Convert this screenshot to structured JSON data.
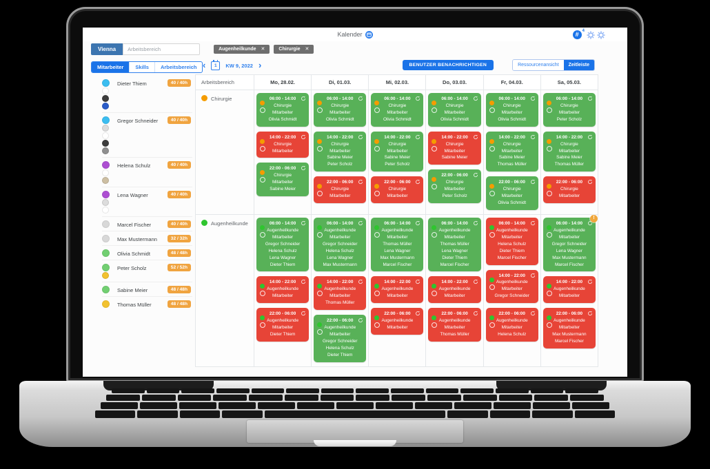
{
  "app": {
    "title": "Kalender",
    "header": {
      "hash_icon": "#",
      "notification_count": "4"
    },
    "toolbar": {
      "location_button": "Vienna",
      "search_placeholder": "Arbeitsbereich",
      "filter_chips": [
        {
          "label": "Augenheilkunde",
          "remove": "✕"
        },
        {
          "label": "Chirurgie",
          "remove": "✕"
        }
      ],
      "tabs": [
        {
          "label": "Mitarbeiter",
          "active": true
        },
        {
          "label": "Skills",
          "active": false
        },
        {
          "label": "Arbeitsbereich",
          "active": false
        }
      ],
      "notify_button": "BENUTZER BENACHRICHTIGEN",
      "view_toggle": [
        {
          "label": "Ressourcenansicht",
          "active": false
        },
        {
          "label": "Zeitleiste",
          "active": true
        }
      ]
    },
    "week_nav": {
      "prev": "‹",
      "icon_day": "1",
      "label": "KW 9, 2022",
      "next": "›"
    },
    "employees": [
      {
        "name": "Dieter Thiem",
        "hours": "40 / 40h",
        "avatar_color": "#3bbdf0",
        "skill_dots": [
          "#ffffff",
          "#3d3d3d",
          "#2a5cc8"
        ]
      },
      {
        "name": "Gregor Schneider",
        "hours": "40 / 40h",
        "avatar_color": "#3bbdf0",
        "skill_dots": [
          "#dcdcdc",
          "#ffffff",
          "#3d3d3d",
          "#8f8f8f"
        ]
      },
      {
        "name": "Helena Schulz",
        "hours": "40 / 40h",
        "avatar_color": "#ad4fd2",
        "skill_dots": [
          "#ffffff",
          "#cdbfa3"
        ]
      },
      {
        "name": "Lena Wagner",
        "hours": "40 / 40h",
        "avatar_color": "#ad4fd2",
        "skill_dots": [
          "#dcdcdc",
          "#ffffff"
        ]
      },
      {
        "name": "Marcel Fischer",
        "hours": "40 / 40h",
        "avatar_color": "#d8d8d8",
        "skill_dots": []
      },
      {
        "name": "Max Mustermann",
        "hours": "32 / 32h",
        "avatar_color": "#d8d8d8",
        "skill_dots": []
      },
      {
        "name": "Olivia Schmidt",
        "hours": "48 / 48h",
        "avatar_color": "#72cf72",
        "skill_dots": []
      },
      {
        "name": "Peter Scholz",
        "hours": "52 / 52h",
        "avatar_color": "#72cf72",
        "skill_dots": [
          "#f2c230"
        ]
      },
      {
        "name": "Sabine Meier",
        "hours": "48 / 48h",
        "avatar_color": "#72cf72",
        "skill_dots": []
      },
      {
        "name": "Thomas Müller",
        "hours": "48 / 48h",
        "avatar_color": "#f2c230",
        "skill_dots": []
      }
    ],
    "calendar": {
      "area_header": "Arbeitsbereich",
      "day_headers": [
        "Mo, 28.02.",
        "Di, 01.03.",
        "Mi, 02.03.",
        "Do, 03.03.",
        "Fr, 04.03.",
        "Sa, 05.03."
      ],
      "areas": [
        {
          "name": "Chirurgie",
          "dot_color": "#f59c00",
          "days": [
            [
              {
                "time": "06:00 - 14:00",
                "area": "Chirurgie",
                "role": "Mitarbeiter",
                "status": "filled",
                "employees": [
                  "Olivia Schmidt"
                ]
              },
              {
                "time": "14:00 - 22:00",
                "area": "Chirurgie",
                "role": "Mitarbeiter",
                "status": "open",
                "employees": []
              },
              {
                "time": "22:00 - 06:00",
                "area": "Chirurgie",
                "role": "Mitarbeiter",
                "status": "filled",
                "employees": [
                  "Sabine Meier"
                ]
              }
            ],
            [
              {
                "time": "06:00 - 14:00",
                "area": "Chirurgie",
                "role": "Mitarbeiter",
                "status": "filled",
                "employees": [
                  "Olivia Schmidt"
                ]
              },
              {
                "time": "14:00 - 22:00",
                "area": "Chirurgie",
                "role": "Mitarbeiter",
                "status": "filled",
                "employees": [
                  "Sabine Meier",
                  "Peter Scholz"
                ]
              },
              {
                "time": "22:00 - 06:00",
                "area": "Chirurgie",
                "role": "Mitarbeiter",
                "status": "open",
                "employees": []
              }
            ],
            [
              {
                "time": "06:00 - 14:00",
                "area": "Chirurgie",
                "role": "Mitarbeiter",
                "status": "filled",
                "employees": [
                  "Olivia Schmidt"
                ]
              },
              {
                "time": "14:00 - 22:00",
                "area": "Chirurgie",
                "role": "Mitarbeiter",
                "status": "filled",
                "employees": [
                  "Sabine Meier",
                  "Peter Scholz"
                ]
              },
              {
                "time": "22:00 - 06:00",
                "area": "Chirurgie",
                "role": "Mitarbeiter",
                "status": "open",
                "employees": []
              }
            ],
            [
              {
                "time": "06:00 - 14:00",
                "area": "Chirurgie",
                "role": "Mitarbeiter",
                "status": "filled",
                "employees": [
                  "Olivia Schmidt"
                ]
              },
              {
                "time": "14:00 - 22:00",
                "area": "Chirurgie",
                "role": "Mitarbeiter",
                "status": "open",
                "employees": [
                  "Sabine Meier"
                ]
              },
              {
                "time": "22:00 - 06:00",
                "area": "Chirurgie",
                "role": "Mitarbeiter",
                "status": "filled",
                "employees": [
                  "Peter Scholz"
                ]
              }
            ],
            [
              {
                "time": "06:00 - 14:00",
                "area": "Chirurgie",
                "role": "Mitarbeiter",
                "status": "filled",
                "employees": [
                  "Olivia Schmidt"
                ]
              },
              {
                "time": "14:00 - 22:00",
                "area": "Chirurgie",
                "role": "Mitarbeiter",
                "status": "filled",
                "employees": [
                  "Sabine Meier",
                  "Thomas Müller"
                ]
              },
              {
                "time": "22:00 - 06:00",
                "area": "Chirurgie",
                "role": "Mitarbeiter",
                "status": "filled",
                "employees": [
                  "Olivia Schmidt"
                ]
              }
            ],
            [
              {
                "time": "06:00 - 14:00",
                "area": "Chirurgie",
                "role": "Mitarbeiter",
                "status": "filled",
                "employees": [
                  "Peter Scholz"
                ]
              },
              {
                "time": "14:00 - 22:00",
                "area": "Chirurgie",
                "role": "Mitarbeiter",
                "status": "filled",
                "employees": [
                  "Sabine Meier",
                  "Thomas Müller"
                ]
              },
              {
                "time": "22:00 - 06:00",
                "area": "Chirurgie",
                "role": "Mitarbeiter",
                "status": "open",
                "employees": []
              }
            ]
          ]
        },
        {
          "name": "Augenheilkunde",
          "dot_color": "#2fc52f",
          "days": [
            [
              {
                "time": "06:00 - 14:00",
                "area": "Augenheilkunde",
                "role": "Mitarbeiter",
                "status": "filled",
                "employees": [
                  "Gregor Schneider",
                  "Helena Schulz",
                  "Lena Wagner",
                  "Dieter Thiem"
                ]
              },
              {
                "time": "14:00 - 22:00",
                "area": "Augenheilkunde",
                "role": "Mitarbeiter",
                "status": "open",
                "employees": []
              },
              {
                "time": "22:00 - 06:00",
                "area": "Augenheilkunde",
                "role": "Mitarbeiter",
                "status": "open",
                "employees": [
                  "Dieter Thiem"
                ]
              }
            ],
            [
              {
                "time": "06:00 - 14:00",
                "area": "Augenheilkunde",
                "role": "Mitarbeiter",
                "status": "filled",
                "employees": [
                  "Gregor Schneider",
                  "Helena Schulz",
                  "Lena Wagner",
                  "Max Mustermann"
                ]
              },
              {
                "time": "14:00 - 22:00",
                "area": "Augenheilkunde",
                "role": "Mitarbeiter",
                "status": "open",
                "employees": [
                  "Thomas Müller"
                ]
              },
              {
                "time": "22:00 - 06:00",
                "area": "Augenheilkunde",
                "role": "Mitarbeiter",
                "status": "filled",
                "employees": [
                  "Gregor Schneider",
                  "Helena Schulz",
                  "Dieter Thiem"
                ]
              }
            ],
            [
              {
                "time": "06:00 - 14:00",
                "area": "Augenheilkunde",
                "role": "Mitarbeiter",
                "status": "filled",
                "employees": [
                  "Thomas Müller",
                  "Lena Wagner",
                  "Max Mustermann",
                  "Marcel Fischer"
                ]
              },
              {
                "time": "14:00 - 22:00",
                "area": "Augenheilkunde",
                "role": "Mitarbeiter",
                "status": "open",
                "employees": []
              },
              {
                "time": "22:00 - 06:00",
                "area": "Augenheilkunde",
                "role": "Mitarbeiter",
                "status": "open",
                "employees": []
              }
            ],
            [
              {
                "time": "06:00 - 14:00",
                "area": "Augenheilkunde",
                "role": "Mitarbeiter",
                "status": "filled",
                "employees": [
                  "Thomas Müller",
                  "Lena Wagner",
                  "Dieter Thiem",
                  "Marcel Fischer"
                ]
              },
              {
                "time": "14:00 - 22:00",
                "area": "Augenheilkunde",
                "role": "Mitarbeiter",
                "status": "open",
                "employees": []
              },
              {
                "time": "22:00 - 06:00",
                "area": "Augenheilkunde",
                "role": "Mitarbeiter",
                "status": "open",
                "employees": [
                  "Thomas Müller"
                ]
              }
            ],
            [
              {
                "time": "06:00 - 14:00",
                "area": "Augenheilkunde",
                "role": "Mitarbeiter",
                "status": "open",
                "employees": [
                  "Helena Schulz",
                  "Dieter Thiem",
                  "Marcel Fischer"
                ]
              },
              {
                "time": "14:00 - 22:00",
                "area": "Augenheilkunde",
                "role": "Mitarbeiter",
                "status": "open",
                "employees": [
                  "Gregor Schneider"
                ]
              },
              {
                "time": "22:00 - 06:00",
                "area": "Augenheilkunde",
                "role": "Mitarbeiter",
                "status": "open",
                "employees": [
                  "Helena Schulz"
                ]
              }
            ],
            [
              {
                "time": "06:00 - 14:00",
                "area": "Augenheilkunde",
                "role": "Mitarbeiter",
                "status": "filled",
                "badge": "!",
                "employees": [
                  "Gregor Schneider",
                  "Lena Wagner",
                  "Max Mustermann",
                  "Marcel Fischer"
                ]
              },
              {
                "time": "14:00 - 22:00",
                "area": "Augenheilkunde",
                "role": "Mitarbeiter",
                "status": "open",
                "employees": []
              },
              {
                "time": "22:00 - 06:00",
                "area": "Augenheilkunde",
                "role": "Mitarbeiter",
                "status": "open",
                "employees": [
                  "Max Mustermann",
                  "Marcel Fischer"
                ]
              }
            ]
          ]
        }
      ]
    },
    "colors": {
      "filled_shift": "#58b158",
      "open_shift": "#e74437",
      "chirurgie_dot": "#f59c00",
      "augenheilkunde_dot": "#2fc52f",
      "hours_badge": "#f0a440",
      "primary_blue": "#1a73e8",
      "warning_badge": "#f0a73c"
    }
  }
}
